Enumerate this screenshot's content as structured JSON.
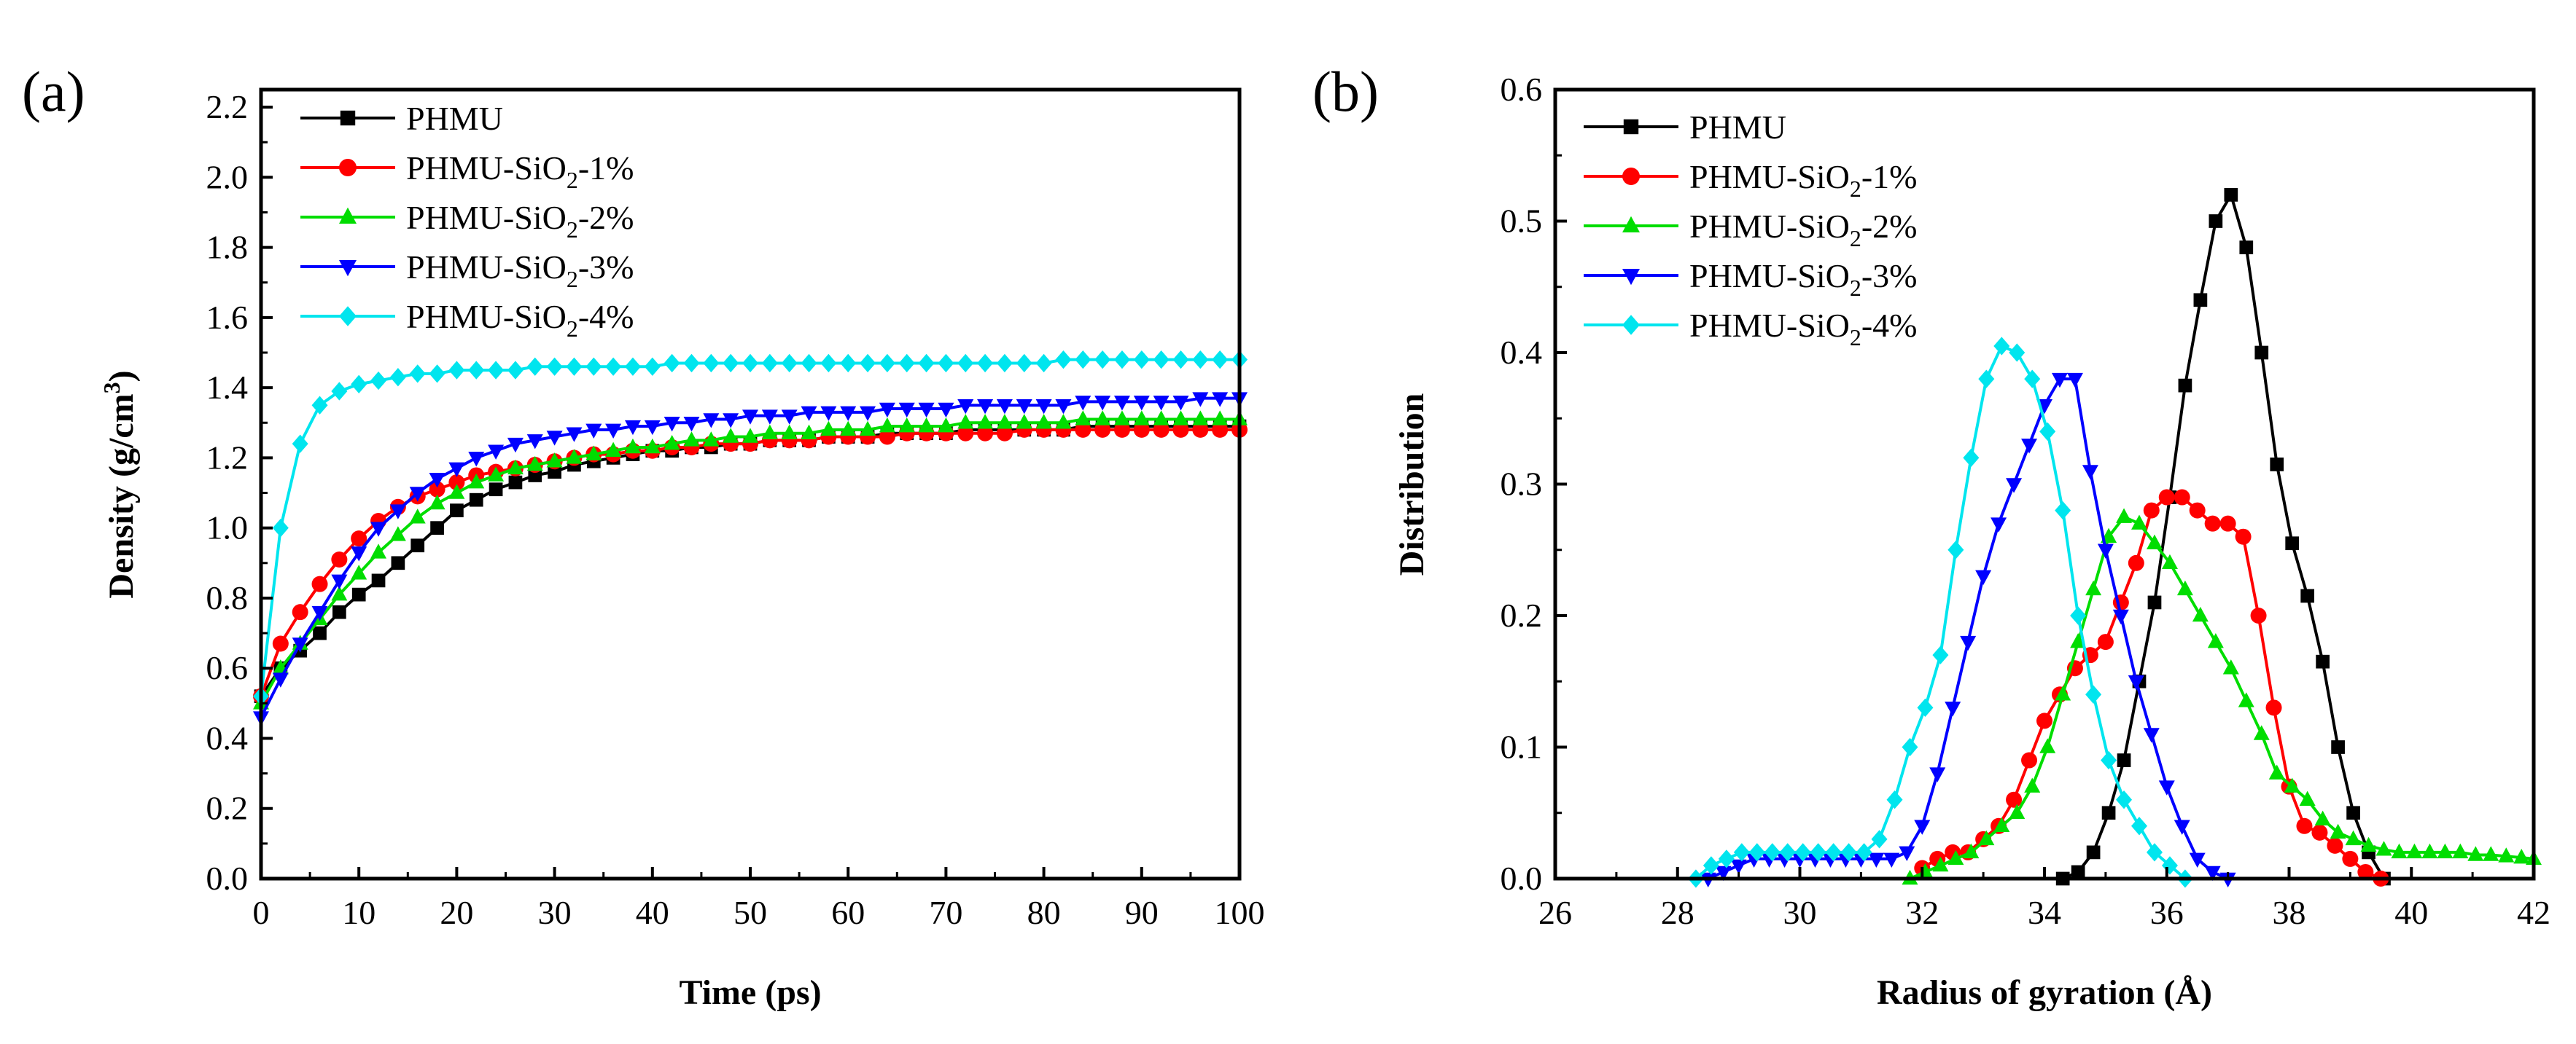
{
  "chart_data": [
    {
      "panel_label": "(a)",
      "type": "line",
      "xlabel": "Time (ps)",
      "ylabel_pre": "Density (g/cm",
      "ylabel_sup": "3",
      "ylabel_post": ")",
      "xlim": [
        0,
        100
      ],
      "ylim": [
        0,
        2.25
      ],
      "xticks": [
        0,
        10,
        20,
        30,
        40,
        50,
        60,
        70,
        80,
        90,
        100
      ],
      "xtick_labels": [
        "0",
        "10",
        "20",
        "30",
        "40",
        "50",
        "60",
        "70",
        "80",
        "90",
        "100"
      ],
      "yticks": [
        0.0,
        0.2,
        0.4,
        0.6,
        0.8,
        1.0,
        1.2,
        1.4,
        1.6,
        1.8,
        2.0,
        2.2
      ],
      "ytick_labels": [
        "0.0",
        "0.2",
        "0.4",
        "0.6",
        "0.8",
        "1.0",
        "1.2",
        "1.4",
        "1.6",
        "1.8",
        "2.0",
        "2.2"
      ],
      "legend": "top-left",
      "x": [
        0,
        2,
        4,
        6,
        8,
        10,
        12,
        14,
        16,
        18,
        20,
        22,
        24,
        26,
        28,
        30,
        32,
        34,
        36,
        38,
        40,
        42,
        44,
        46,
        48,
        50,
        52,
        54,
        56,
        58,
        60,
        62,
        64,
        66,
        68,
        70,
        72,
        74,
        76,
        78,
        80,
        82,
        84,
        86,
        88,
        90,
        92,
        94,
        96,
        98,
        100
      ],
      "series": [
        {
          "name": "PHMU",
          "label_pre": "PHMU",
          "label_sub": "",
          "label_post": "",
          "color": "#000000",
          "marker": "square",
          "values": [
            0.52,
            0.6,
            0.65,
            0.7,
            0.76,
            0.81,
            0.85,
            0.9,
            0.95,
            1.0,
            1.05,
            1.08,
            1.11,
            1.13,
            1.15,
            1.16,
            1.18,
            1.19,
            1.2,
            1.21,
            1.22,
            1.22,
            1.23,
            1.23,
            1.24,
            1.24,
            1.25,
            1.25,
            1.25,
            1.26,
            1.26,
            1.26,
            1.27,
            1.27,
            1.27,
            1.27,
            1.28,
            1.28,
            1.28,
            1.28,
            1.28,
            1.28,
            1.29,
            1.29,
            1.29,
            1.29,
            1.29,
            1.29,
            1.29,
            1.29,
            1.29
          ]
        },
        {
          "name": "PHMU-SiO2-1%",
          "label_pre": "PHMU-SiO",
          "label_sub": "2",
          "label_post": "-1%",
          "color": "#ff0000",
          "marker": "circle",
          "values": [
            0.52,
            0.67,
            0.76,
            0.84,
            0.91,
            0.97,
            1.02,
            1.06,
            1.09,
            1.11,
            1.13,
            1.15,
            1.16,
            1.17,
            1.18,
            1.19,
            1.2,
            1.21,
            1.21,
            1.22,
            1.22,
            1.23,
            1.23,
            1.24,
            1.24,
            1.24,
            1.25,
            1.25,
            1.25,
            1.26,
            1.26,
            1.26,
            1.26,
            1.27,
            1.27,
            1.27,
            1.27,
            1.27,
            1.27,
            1.28,
            1.28,
            1.28,
            1.28,
            1.28,
            1.28,
            1.28,
            1.28,
            1.28,
            1.28,
            1.28,
            1.28
          ]
        },
        {
          "name": "PHMU-SiO2-2%",
          "label_pre": "PHMU-SiO",
          "label_sub": "2",
          "label_post": "-2%",
          "color": "#00dd00",
          "marker": "triangle-up",
          "values": [
            0.5,
            0.6,
            0.67,
            0.74,
            0.81,
            0.87,
            0.93,
            0.98,
            1.03,
            1.07,
            1.1,
            1.13,
            1.15,
            1.17,
            1.18,
            1.19,
            1.2,
            1.21,
            1.22,
            1.23,
            1.23,
            1.24,
            1.25,
            1.25,
            1.26,
            1.26,
            1.27,
            1.27,
            1.27,
            1.28,
            1.28,
            1.28,
            1.29,
            1.29,
            1.29,
            1.29,
            1.3,
            1.3,
            1.3,
            1.3,
            1.3,
            1.3,
            1.31,
            1.31,
            1.31,
            1.31,
            1.31,
            1.31,
            1.31,
            1.31,
            1.31
          ]
        },
        {
          "name": "PHMU-SiO2-3%",
          "label_pre": "PHMU-SiO",
          "label_sub": "2",
          "label_post": "-3%",
          "color": "#0000ff",
          "marker": "triangle-down",
          "values": [
            0.46,
            0.57,
            0.67,
            0.76,
            0.85,
            0.93,
            1.0,
            1.05,
            1.1,
            1.14,
            1.17,
            1.2,
            1.22,
            1.24,
            1.25,
            1.26,
            1.27,
            1.28,
            1.28,
            1.29,
            1.29,
            1.3,
            1.3,
            1.31,
            1.31,
            1.32,
            1.32,
            1.32,
            1.33,
            1.33,
            1.33,
            1.33,
            1.34,
            1.34,
            1.34,
            1.34,
            1.35,
            1.35,
            1.35,
            1.35,
            1.35,
            1.35,
            1.36,
            1.36,
            1.36,
            1.36,
            1.36,
            1.36,
            1.37,
            1.37,
            1.37
          ]
        },
        {
          "name": "PHMU-SiO2-4%",
          "label_pre": "PHMU-SiO",
          "label_sub": "2",
          "label_post": "-4%",
          "color": "#00e5ee",
          "marker": "diamond",
          "values": [
            0.52,
            1.0,
            1.24,
            1.35,
            1.39,
            1.41,
            1.42,
            1.43,
            1.44,
            1.44,
            1.45,
            1.45,
            1.45,
            1.45,
            1.46,
            1.46,
            1.46,
            1.46,
            1.46,
            1.46,
            1.46,
            1.47,
            1.47,
            1.47,
            1.47,
            1.47,
            1.47,
            1.47,
            1.47,
            1.47,
            1.47,
            1.47,
            1.47,
            1.47,
            1.47,
            1.47,
            1.47,
            1.47,
            1.47,
            1.47,
            1.47,
            1.48,
            1.48,
            1.48,
            1.48,
            1.48,
            1.48,
            1.48,
            1.48,
            1.48,
            1.48
          ]
        }
      ]
    },
    {
      "panel_label": "(b)",
      "type": "line",
      "xlabel": "Radius of gyration (Å)",
      "ylabel": "Distribution",
      "xlim": [
        26,
        42
      ],
      "ylim": [
        0,
        0.6
      ],
      "xticks": [
        26,
        28,
        30,
        32,
        34,
        36,
        38,
        40,
        42
      ],
      "xtick_labels": [
        "26",
        "28",
        "30",
        "32",
        "34",
        "36",
        "38",
        "40",
        "42"
      ],
      "yticks": [
        0.0,
        0.1,
        0.2,
        0.3,
        0.4,
        0.5,
        0.6
      ],
      "ytick_labels": [
        "0.0",
        "0.1",
        "0.2",
        "0.3",
        "0.4",
        "0.5",
        "0.6"
      ],
      "legend": "top-left",
      "series": [
        {
          "name": "PHMU",
          "label_pre": "PHMU",
          "label_sub": "",
          "label_post": "",
          "color": "#000000",
          "marker": "square",
          "x": [
            34.3,
            34.55,
            34.8,
            35.05,
            35.3,
            35.55,
            35.8,
            36.05,
            36.3,
            36.55,
            36.8,
            37.05,
            37.3,
            37.55,
            37.8,
            38.05,
            38.3,
            38.55,
            38.8,
            39.05,
            39.3,
            39.55
          ],
          "y": [
            0.0,
            0.005,
            0.02,
            0.05,
            0.09,
            0.15,
            0.21,
            0.29,
            0.375,
            0.44,
            0.5,
            0.52,
            0.48,
            0.4,
            0.315,
            0.255,
            0.215,
            0.165,
            0.1,
            0.05,
            0.02,
            0.0
          ]
        },
        {
          "name": "PHMU-SiO2-1%",
          "label_pre": "PHMU-SiO",
          "label_sub": "2",
          "label_post": "-1%",
          "color": "#ff0000",
          "marker": "circle",
          "x": [
            32.0,
            32.25,
            32.5,
            32.75,
            33.0,
            33.25,
            33.5,
            33.75,
            34.0,
            34.25,
            34.5,
            34.75,
            35.0,
            35.25,
            35.5,
            35.75,
            36.0,
            36.25,
            36.5,
            36.75,
            37.0,
            37.25,
            37.5,
            37.75,
            38.0,
            38.25,
            38.5,
            38.75,
            39.0,
            39.25,
            39.5
          ],
          "y": [
            0.008,
            0.015,
            0.02,
            0.02,
            0.03,
            0.04,
            0.06,
            0.09,
            0.12,
            0.14,
            0.16,
            0.17,
            0.18,
            0.21,
            0.24,
            0.28,
            0.29,
            0.29,
            0.28,
            0.27,
            0.27,
            0.26,
            0.2,
            0.13,
            0.07,
            0.04,
            0.035,
            0.025,
            0.015,
            0.005,
            0.0
          ]
        },
        {
          "name": "PHMU-SiO2-2%",
          "label_pre": "PHMU-SiO",
          "label_sub": "2",
          "label_post": "-2%",
          "color": "#00dd00",
          "marker": "triangle-up",
          "x": [
            31.8,
            32.05,
            32.3,
            32.55,
            32.8,
            33.05,
            33.3,
            33.55,
            33.8,
            34.05,
            34.3,
            34.55,
            34.8,
            35.05,
            35.3,
            35.55,
            35.8,
            36.05,
            36.3,
            36.55,
            36.8,
            37.05,
            37.3,
            37.55,
            37.8,
            38.05,
            38.3,
            38.55,
            38.8,
            39.05,
            39.3,
            39.55,
            39.8,
            40.05,
            40.3,
            40.55,
            40.8,
            41.05,
            41.3,
            41.55,
            41.8,
            42.0
          ],
          "y": [
            0.0,
            0.005,
            0.01,
            0.015,
            0.02,
            0.03,
            0.04,
            0.05,
            0.07,
            0.1,
            0.14,
            0.18,
            0.22,
            0.26,
            0.275,
            0.27,
            0.255,
            0.24,
            0.22,
            0.2,
            0.18,
            0.16,
            0.135,
            0.11,
            0.08,
            0.07,
            0.06,
            0.045,
            0.035,
            0.03,
            0.025,
            0.022,
            0.02,
            0.02,
            0.02,
            0.02,
            0.02,
            0.018,
            0.018,
            0.017,
            0.016,
            0.015
          ]
        },
        {
          "name": "PHMU-SiO2-3%",
          "label_pre": "PHMU-SiO",
          "label_sub": "2",
          "label_post": "-3%",
          "color": "#0000ff",
          "marker": "triangle-down",
          "x": [
            28.5,
            28.75,
            29.0,
            29.25,
            29.5,
            29.75,
            30.0,
            30.25,
            30.5,
            30.75,
            31.0,
            31.25,
            31.5,
            31.75,
            32.0,
            32.25,
            32.5,
            32.75,
            33.0,
            33.25,
            33.5,
            33.75,
            34.0,
            34.25,
            34.5,
            34.75,
            35.0,
            35.25,
            35.5,
            35.75,
            36.0,
            36.25,
            36.5,
            36.75,
            37.0
          ],
          "y": [
            0.0,
            0.005,
            0.01,
            0.015,
            0.015,
            0.015,
            0.015,
            0.015,
            0.015,
            0.015,
            0.015,
            0.015,
            0.015,
            0.02,
            0.04,
            0.08,
            0.13,
            0.18,
            0.23,
            0.27,
            0.3,
            0.33,
            0.36,
            0.38,
            0.38,
            0.31,
            0.25,
            0.2,
            0.15,
            0.11,
            0.07,
            0.04,
            0.015,
            0.005,
            0.0
          ]
        },
        {
          "name": "PHMU-SiO2-4%",
          "label_pre": "PHMU-SiO",
          "label_sub": "2",
          "label_post": "-4%",
          "color": "#00e5ee",
          "marker": "diamond",
          "x": [
            28.3,
            28.55,
            28.8,
            29.05,
            29.3,
            29.55,
            29.8,
            30.05,
            30.3,
            30.55,
            30.8,
            31.05,
            31.3,
            31.55,
            31.8,
            32.05,
            32.3,
            32.55,
            32.8,
            33.05,
            33.3,
            33.55,
            33.8,
            34.05,
            34.3,
            34.55,
            34.8,
            35.05,
            35.3,
            35.55,
            35.8,
            36.05,
            36.3
          ],
          "y": [
            0.0,
            0.01,
            0.015,
            0.02,
            0.02,
            0.02,
            0.02,
            0.02,
            0.02,
            0.02,
            0.02,
            0.02,
            0.03,
            0.06,
            0.1,
            0.13,
            0.17,
            0.25,
            0.32,
            0.38,
            0.405,
            0.4,
            0.38,
            0.34,
            0.28,
            0.2,
            0.14,
            0.09,
            0.06,
            0.04,
            0.02,
            0.01,
            0.0
          ]
        }
      ]
    }
  ]
}
